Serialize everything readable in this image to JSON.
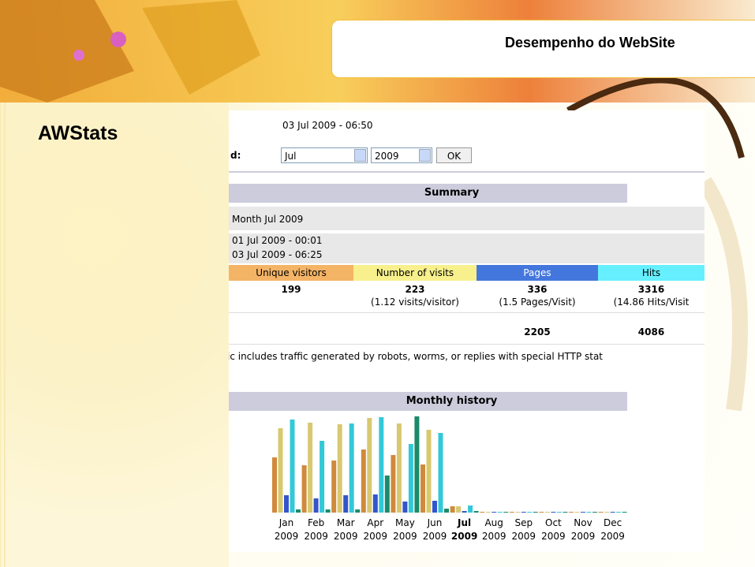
{
  "header": {
    "title": "Desempenho do WebSite"
  },
  "slide_title": "AWStats",
  "panel": {
    "updated": "03 Jul 2009 - 06:50",
    "period_label": "d:",
    "month_select": "Jul",
    "year_select": "2009",
    "ok_button": "OK"
  },
  "summary": {
    "title": "Summary",
    "month": "Month Jul 2009",
    "first_visit": "01 Jul 2009 - 00:01",
    "last_visit": "03 Jul 2009 - 06:25",
    "columns": [
      {
        "name": "Unique visitors",
        "color": "#f4b466"
      },
      {
        "name": "Number of visits",
        "color": "#f8f08c"
      },
      {
        "name": "Pages",
        "color": "#4477dd"
      },
      {
        "name": "Hits",
        "color": "#66f0ff"
      }
    ],
    "values": [
      199,
      223,
      336,
      3316
    ],
    "ratios": [
      "(1.12 visits/visitor)",
      "(1.5 Pages/Visit)",
      "(14.86 Hits/Visit"
    ],
    "not_viewed": [
      2205,
      4086
    ],
    "note": "ic includes traffic generated by robots, worms, or replies with special HTTP stat"
  },
  "monthly_history": {
    "title": "Monthly history",
    "months": [
      "Jan",
      "Feb",
      "Mar",
      "Apr",
      "May",
      "Jun",
      "Jul",
      "Aug",
      "Sep",
      "Oct",
      "Nov",
      "Dec"
    ],
    "years": [
      "2009",
      "2009",
      "2009",
      "2009",
      "2009",
      "2009",
      "2009",
      "2009",
      "2009",
      "2009",
      "2009",
      "2009"
    ],
    "bold_month": 6,
    "series": [
      {
        "color": "#d08a3c",
        "values": [
          70,
          60,
          66,
          80,
          73,
          61,
          8,
          1,
          1,
          1,
          1,
          1
        ]
      },
      {
        "color": "#d8c870",
        "values": [
          107,
          114,
          112,
          120,
          113,
          105,
          8,
          1,
          1,
          1,
          1,
          1
        ]
      },
      {
        "color": "#3355cc",
        "values": [
          22,
          18,
          22,
          23,
          14,
          15,
          2,
          1,
          1,
          1,
          1,
          1
        ]
      },
      {
        "color": "#33c8d8",
        "values": [
          118,
          91,
          113,
          121,
          87,
          101,
          9,
          1,
          1,
          1,
          1,
          1
        ]
      },
      {
        "color": "#1a8a6a",
        "values": [
          4,
          4,
          4,
          47,
          122,
          5,
          2,
          1,
          1,
          1,
          1,
          1
        ]
      }
    ]
  }
}
